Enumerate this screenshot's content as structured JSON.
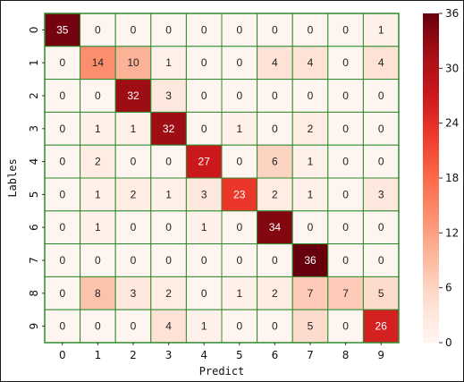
{
  "chart_data": {
    "type": "heatmap",
    "xlabel": "Predict",
    "ylabel": "Lables",
    "x_categories": [
      "0",
      "1",
      "2",
      "3",
      "4",
      "5",
      "6",
      "7",
      "8",
      "9"
    ],
    "y_categories": [
      "0",
      "1",
      "2",
      "3",
      "4",
      "5",
      "6",
      "7",
      "8",
      "9"
    ],
    "values": [
      [
        35,
        0,
        0,
        0,
        0,
        0,
        0,
        0,
        0,
        1
      ],
      [
        0,
        14,
        10,
        1,
        0,
        0,
        4,
        4,
        0,
        4
      ],
      [
        0,
        0,
        32,
        3,
        0,
        0,
        0,
        0,
        0,
        0
      ],
      [
        0,
        1,
        1,
        32,
        0,
        1,
        0,
        2,
        0,
        0
      ],
      [
        0,
        2,
        0,
        0,
        27,
        0,
        6,
        1,
        0,
        0
      ],
      [
        0,
        1,
        2,
        1,
        3,
        23,
        2,
        1,
        0,
        3
      ],
      [
        0,
        1,
        0,
        0,
        1,
        0,
        34,
        0,
        0,
        0
      ],
      [
        0,
        0,
        0,
        0,
        0,
        0,
        0,
        36,
        0,
        0
      ],
      [
        0,
        8,
        3,
        2,
        0,
        1,
        2,
        7,
        7,
        5
      ],
      [
        0,
        0,
        0,
        4,
        1,
        0,
        0,
        5,
        0,
        26
      ]
    ],
    "vmin": 0,
    "vmax": 36,
    "colormap": "Reds",
    "colorbar_ticks": [
      0,
      6,
      12,
      18,
      24,
      30,
      36
    ],
    "colors": {
      "cell_border": "#2e8b2e",
      "low": "#fff5f0",
      "high": "#67000d"
    }
  }
}
